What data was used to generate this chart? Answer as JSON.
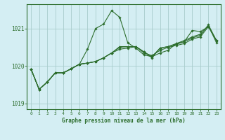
{
  "title": "Graphe pression niveau de la mer (hPa)",
  "bg_color": "#d4eef3",
  "grid_color": "#a8cccc",
  "line_color": "#2d6e2d",
  "xlim": [
    -0.5,
    23.5
  ],
  "ylim": [
    1018.85,
    1021.65
  ],
  "yticks": [
    1019,
    1020,
    1021
  ],
  "xticks": [
    0,
    1,
    2,
    3,
    4,
    5,
    6,
    7,
    8,
    9,
    10,
    11,
    12,
    13,
    14,
    15,
    16,
    17,
    18,
    19,
    20,
    21,
    22,
    23
  ],
  "series": [
    [
      1019.92,
      1019.38,
      1019.57,
      1019.82,
      1019.82,
      1019.93,
      1020.05,
      1020.45,
      1021.0,
      1021.12,
      1021.48,
      1021.3,
      1020.62,
      1020.48,
      1020.3,
      1020.25,
      1020.35,
      1020.42,
      1020.6,
      1020.65,
      1020.95,
      1020.92,
      1021.05,
      1020.68
    ],
    [
      1019.92,
      1019.38,
      1019.57,
      1019.82,
      1019.82,
      1019.93,
      1020.05,
      1020.08,
      1020.12,
      1020.22,
      1020.35,
      1020.45,
      1020.48,
      1020.52,
      1020.35,
      1020.28,
      1020.42,
      1020.5,
      1020.55,
      1020.6,
      1020.72,
      1020.78,
      1021.05,
      1020.68
    ],
    [
      1019.92,
      1019.38,
      1019.57,
      1019.82,
      1019.82,
      1019.93,
      1020.05,
      1020.08,
      1020.12,
      1020.22,
      1020.35,
      1020.5,
      1020.52,
      1020.52,
      1020.38,
      1020.25,
      1020.48,
      1020.52,
      1020.58,
      1020.65,
      1020.75,
      1020.82,
      1021.1,
      1020.68
    ],
    [
      1019.92,
      1019.38,
      1019.57,
      1019.82,
      1019.82,
      1019.93,
      1020.05,
      1020.08,
      1020.12,
      1020.22,
      1020.35,
      1020.52,
      1020.52,
      1020.52,
      1020.38,
      1020.22,
      1020.48,
      1020.52,
      1020.6,
      1020.68,
      1020.78,
      1020.85,
      1021.08,
      1020.62
    ]
  ]
}
